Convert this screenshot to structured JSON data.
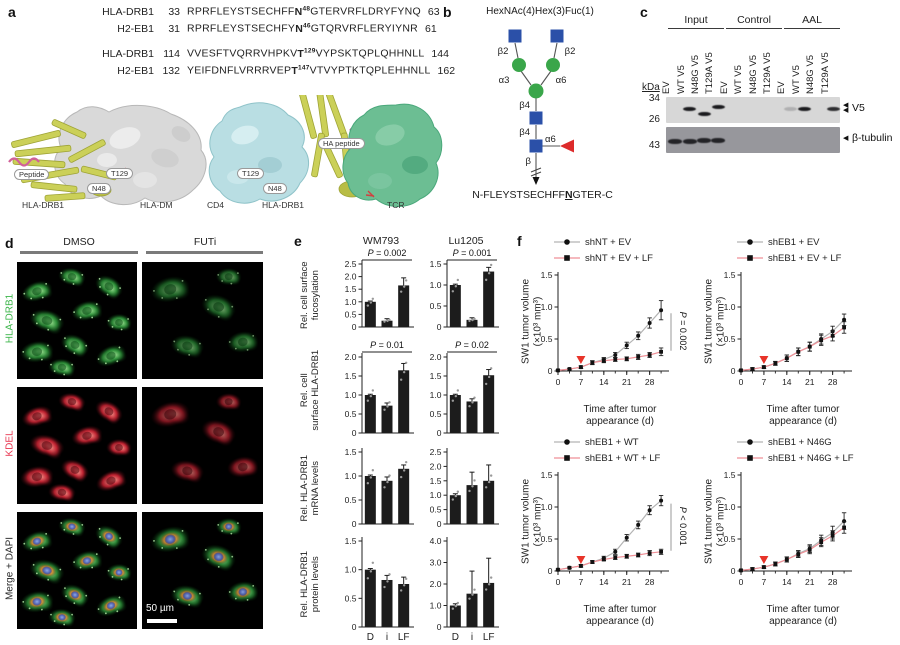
{
  "panel_a": {
    "label": "a",
    "alignment": [
      {
        "name": "HLA-DRB1",
        "start": "33",
        "pre": "RPRFLEYSTSECHFF",
        "residue": "N",
        "sup": "48",
        "post": "GTERVRFLDRYFYNQ",
        "end": "63"
      },
      {
        "name": "H2-EB1",
        "start": "31",
        "pre": "RPRFLEYSTSECHFY",
        "residue": "N",
        "sup": "46",
        "post": "GTQRVRFLERYIYNR",
        "end": "61"
      },
      {
        "name": "HLA-DRB1",
        "start": "114",
        "pre": "VVESFTVQRRVHPKV",
        "residue": "T",
        "sup": "129",
        "post": "VYPSKTQPLQHHNLL",
        "end": "144"
      },
      {
        "name": "H2-EB1",
        "start": "132",
        "pre": "YEIFDNFLVRRRVEP",
        "residue": "T",
        "sup": "147",
        "post": "VTVYPTKTQPLEHHNLL",
        "end": "162"
      }
    ],
    "left_structure": {
      "peptide_label": "Peptide",
      "t_label": "T129",
      "n_label": "N48",
      "caption_left": "HLA-DRB1",
      "caption_right": "HLA-DM"
    },
    "right_structure": {
      "t_label": "T129",
      "n_label": "N48",
      "ha_label": "HA peptide",
      "caption_left": "CD4",
      "caption_mid": "HLA-DRB1",
      "caption_right": "TCR"
    }
  },
  "panel_b": {
    "label": "b",
    "title": "HexNAc(4)Hex(3)Fuc(1)",
    "linkages": {
      "b2_left": "β2",
      "b2_right": "β2",
      "a3": "α3",
      "a6": "α6",
      "b4_upper": "β4",
      "b4_lower": "β4",
      "a6_fuc": "α6",
      "beta": "β"
    },
    "sequence": {
      "pre": "N-FLEYSTSECHFF",
      "residue": "N",
      "post": "GTER-C"
    }
  },
  "panel_c": {
    "label": "c",
    "groups": [
      "Input",
      "Control",
      "AAL"
    ],
    "lanes": [
      "EV",
      "WT V5",
      "N48G V5",
      "T129A V5"
    ],
    "kda": "kDa",
    "marker_34": "34",
    "marker_26": "26",
    "marker_43": "43",
    "blot1_label": "V5",
    "blot2_label": "β-tubulin",
    "bands_top": [
      [
        0,
        1,
        1,
        1
      ],
      [
        0,
        0,
        0,
        0
      ],
      [
        0.2,
        1,
        0,
        0.9
      ]
    ],
    "bands_top_dy": [
      [
        0,
        0,
        5,
        -2
      ],
      [
        0,
        0,
        0,
        0
      ],
      [
        0,
        0,
        0,
        0
      ]
    ],
    "bands_bottom": [
      [
        1,
        1,
        1,
        1
      ],
      [
        0,
        0,
        0,
        0
      ],
      [
        0,
        0,
        0,
        0
      ]
    ]
  },
  "panel_d": {
    "label": "d",
    "columns": [
      "DMSO",
      "FUTi"
    ],
    "rows": [
      {
        "label": "HLA-DRB1",
        "color": "#3cb54a"
      },
      {
        "label": "KDEL",
        "color": "#e8344e"
      },
      {
        "label": "Merge + DAPI",
        "color": "#2a2a2a"
      }
    ],
    "scale_bar": "50 µm"
  },
  "panel_e": {
    "label": "e"
  },
  "panel_f": {
    "label": "f"
  },
  "chart_data": {
    "bar_charts": {
      "type": "bar",
      "col_titles": [
        "WM793",
        "Lu1205"
      ],
      "categories": [
        "D",
        "i",
        "LF"
      ],
      "bar_color": "#1c1c1c",
      "rows": [
        {
          "ylabel": [
            "Rel. cell surface",
            "fucosylation"
          ],
          "charts": [
            {
              "p": "P = 0.002",
              "ymax": 2.5,
              "yticks": [
                "0",
                "0.5",
                "1.0",
                "1.5",
                "2.0",
                "2.5"
              ],
              "values": [
                1.0,
                0.25,
                1.65
              ],
              "errors": [
                0.03,
                0.08,
                0.3
              ]
            },
            {
              "p": "P = 0.001",
              "ymax": 1.5,
              "yticks": [
                "0",
                "0.5",
                "1.0",
                "1.5"
              ],
              "values": [
                1.0,
                0.17,
                1.32
              ],
              "errors": [
                0.02,
                0.05,
                0.1
              ]
            }
          ]
        },
        {
          "ylabel": [
            "Rel. cell",
            "surface HLA-DRB1"
          ],
          "charts": [
            {
              "p": "P = 0.01",
              "ymax": 2.0,
              "yticks": [
                "0",
                "0.5",
                "1.0",
                "1.5",
                "2.0"
              ],
              "values": [
                1.0,
                0.72,
                1.65
              ],
              "errors": [
                0.02,
                0.07,
                0.18
              ]
            },
            {
              "p": "P = 0.02",
              "ymax": 2.0,
              "yticks": [
                "0",
                "0.5",
                "1.0",
                "1.5",
                "2.0"
              ],
              "values": [
                1.0,
                0.83,
                1.52
              ],
              "errors": [
                0.02,
                0.07,
                0.15
              ]
            }
          ]
        },
        {
          "ylabel": [
            "Rel. HLA-DRB1",
            "mRNA levels"
          ],
          "charts": [
            {
              "p": null,
              "ymax": 1.5,
              "yticks": [
                "0",
                "0.5",
                "1.0",
                "1.5"
              ],
              "values": [
                1.0,
                0.9,
                1.15
              ],
              "errors": [
                0.02,
                0.08,
                0.08
              ]
            },
            {
              "p": null,
              "ymax": 2.5,
              "yticks": [
                "0",
                "0.5",
                "1.0",
                "1.5",
                "2.0",
                "2.5"
              ],
              "values": [
                1.0,
                1.35,
                1.5
              ],
              "errors": [
                0.05,
                0.45,
                0.55
              ]
            }
          ]
        },
        {
          "ylabel": [
            "Rel. HLA-DRB1",
            "protein levels"
          ],
          "charts": [
            {
              "p": null,
              "ymax": 1.5,
              "yticks": [
                "0",
                "0.5",
                "1.0",
                "1.5"
              ],
              "values": [
                1.0,
                0.82,
                0.75
              ],
              "errors": [
                0.02,
                0.08,
                0.12
              ]
            },
            {
              "p": null,
              "ymax": 4.0,
              "yticks": [
                "0",
                "1.0",
                "2.0",
                "3.0",
                "4.0"
              ],
              "values": [
                1.0,
                1.55,
                2.05
              ],
              "errors": [
                0.08,
                1.05,
                1.15
              ]
            }
          ]
        }
      ]
    },
    "line_charts": {
      "type": "line",
      "ylabel": [
        "SW1 tumor volume",
        "(×10³ mm³)"
      ],
      "xlabel": [
        "Time after tumor",
        "appearance (d)"
      ],
      "yticks": [
        "0",
        "0.5",
        "1.0",
        "1.5"
      ],
      "ymax": 1.5,
      "xticks": [
        0,
        7,
        14,
        21,
        28
      ],
      "xmax": 33,
      "x": [
        0,
        3.5,
        7,
        10.5,
        14,
        17.5,
        21,
        24.5,
        28,
        31.5
      ],
      "treatment_arrow_day": 7,
      "arrow_color": "#e8342a",
      "charts": [
        {
          "p": "P = 0.002",
          "series": [
            {
              "label": "shNT + EV",
              "marker": "circle",
              "line_color": "#b3b3b3",
              "values": [
                0.01,
                0.03,
                0.06,
                0.13,
                0.18,
                0.25,
                0.4,
                0.55,
                0.75,
                0.95
              ],
              "errors": [
                0.01,
                0.01,
                0.02,
                0.03,
                0.03,
                0.04,
                0.05,
                0.06,
                0.08,
                0.15
              ]
            },
            {
              "label": "shNT + EV + LF",
              "marker": "square",
              "line_color": "#ef8f96",
              "values": [
                0.01,
                0.03,
                0.06,
                0.13,
                0.16,
                0.18,
                0.19,
                0.22,
                0.25,
                0.3
              ],
              "errors": [
                0.01,
                0.01,
                0.02,
                0.03,
                0.03,
                0.03,
                0.03,
                0.04,
                0.04,
                0.06
              ]
            }
          ]
        },
        {
          "p": null,
          "series": [
            {
              "label": "shEB1 + EV",
              "marker": "circle",
              "line_color": "#b3b3b3",
              "values": [
                0.01,
                0.03,
                0.06,
                0.12,
                0.2,
                0.3,
                0.38,
                0.5,
                0.62,
                0.8
              ],
              "errors": [
                0.01,
                0.02,
                0.02,
                0.03,
                0.05,
                0.06,
                0.07,
                0.08,
                0.08,
                0.09
              ]
            },
            {
              "label": "shEB1 + EV + LF",
              "marker": "square",
              "line_color": "#ef8f96",
              "values": [
                0.01,
                0.03,
                0.06,
                0.12,
                0.2,
                0.3,
                0.38,
                0.48,
                0.55,
                0.68
              ],
              "errors": [
                0.01,
                0.02,
                0.02,
                0.03,
                0.05,
                0.06,
                0.07,
                0.08,
                0.08,
                0.09
              ]
            }
          ]
        },
        {
          "p": "P < 0.001",
          "series": [
            {
              "label": "shEB1 + WT",
              "marker": "circle",
              "line_color": "#b3b3b3",
              "values": [
                0.02,
                0.05,
                0.08,
                0.14,
                0.2,
                0.3,
                0.52,
                0.72,
                0.95,
                1.1
              ],
              "errors": [
                0.01,
                0.01,
                0.02,
                0.02,
                0.03,
                0.04,
                0.05,
                0.06,
                0.07,
                0.08
              ]
            },
            {
              "label": "shEB1 + WT + LF",
              "marker": "square",
              "line_color": "#ef8f96",
              "values": [
                0.02,
                0.05,
                0.08,
                0.14,
                0.18,
                0.21,
                0.23,
                0.25,
                0.28,
                0.3
              ],
              "errors": [
                0.01,
                0.01,
                0.02,
                0.02,
                0.02,
                0.03,
                0.03,
                0.03,
                0.04,
                0.04
              ]
            }
          ]
        },
        {
          "p": null,
          "series": [
            {
              "label": "shEB1 + N46G",
              "marker": "circle",
              "line_color": "#b3b3b3",
              "values": [
                0.01,
                0.03,
                0.06,
                0.11,
                0.18,
                0.27,
                0.35,
                0.48,
                0.6,
                0.78
              ],
              "errors": [
                0.01,
                0.02,
                0.02,
                0.03,
                0.04,
                0.05,
                0.06,
                0.08,
                0.1,
                0.13
              ]
            },
            {
              "label": "shEB1 + N46G + LF",
              "marker": "square",
              "line_color": "#ef8f96",
              "values": [
                0.01,
                0.03,
                0.06,
                0.11,
                0.18,
                0.26,
                0.33,
                0.45,
                0.55,
                0.68
              ],
              "errors": [
                0.01,
                0.02,
                0.02,
                0.03,
                0.04,
                0.05,
                0.06,
                0.07,
                0.08,
                0.09
              ]
            }
          ]
        }
      ]
    }
  },
  "colors": {
    "glycan_blue": "#2b50a8",
    "glycan_green": "#3aa64a",
    "glycan_red": "#dd2b2b"
  }
}
